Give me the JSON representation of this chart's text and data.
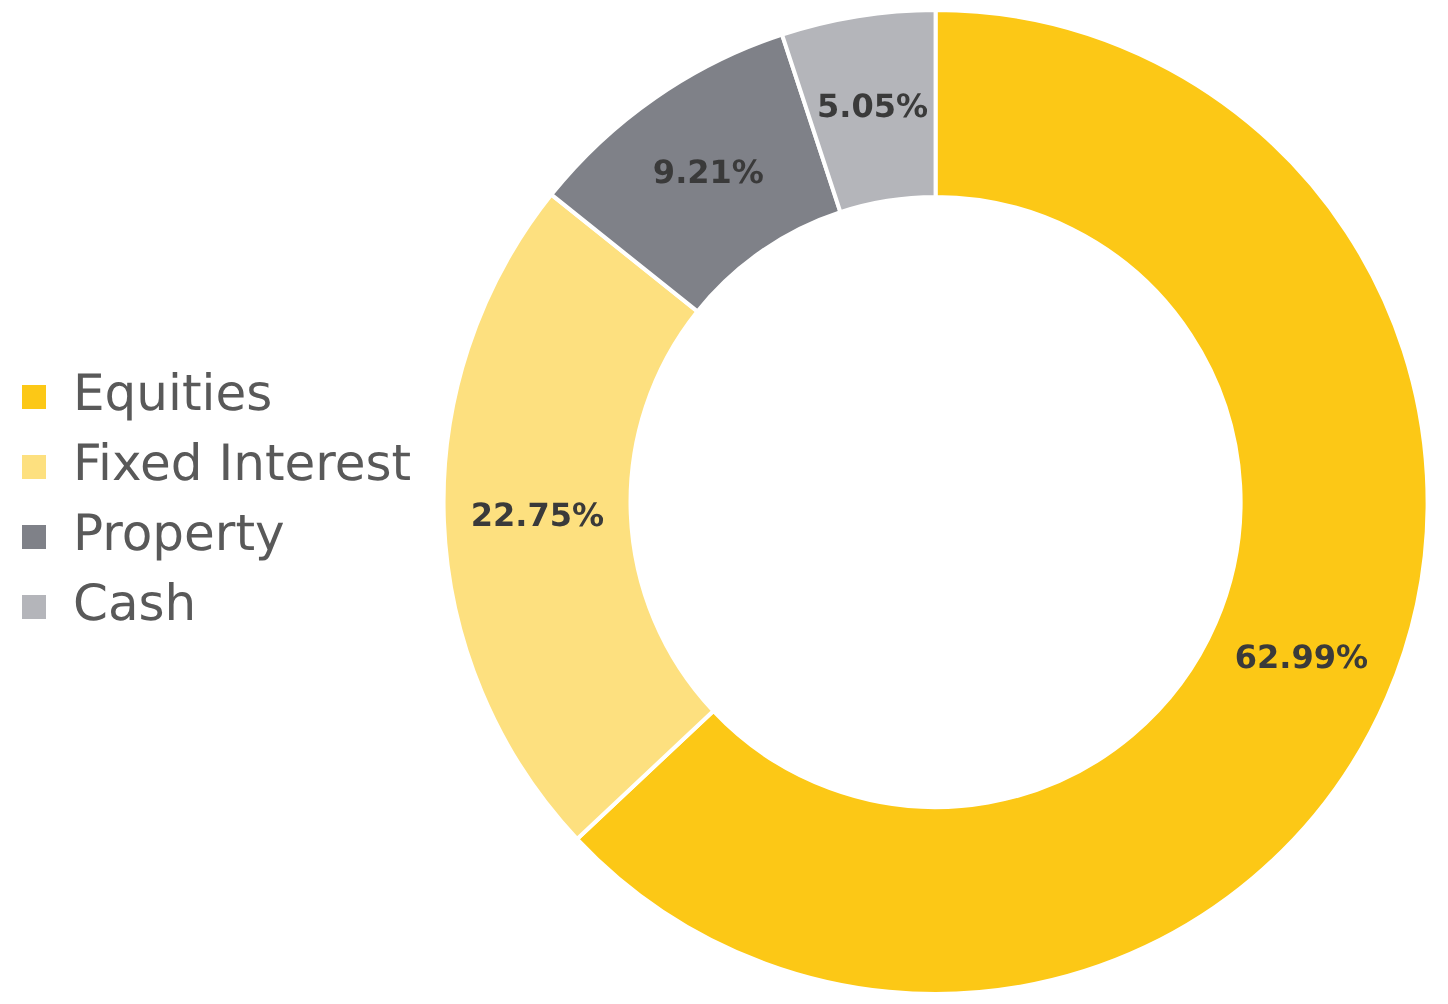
{
  "chart_data": {
    "type": "donut",
    "categories": [
      "Equities",
      "Fixed Interest",
      "Property",
      "Cash"
    ],
    "values": [
      62.99,
      22.75,
      9.21,
      5.05
    ],
    "value_labels": [
      "62.99%",
      "22.75%",
      "9.21%",
      "5.05%"
    ],
    "colors": [
      "#fcc816",
      "#fde07f",
      "#7f8188",
      "#b4b5ba"
    ],
    "legend": "left"
  }
}
